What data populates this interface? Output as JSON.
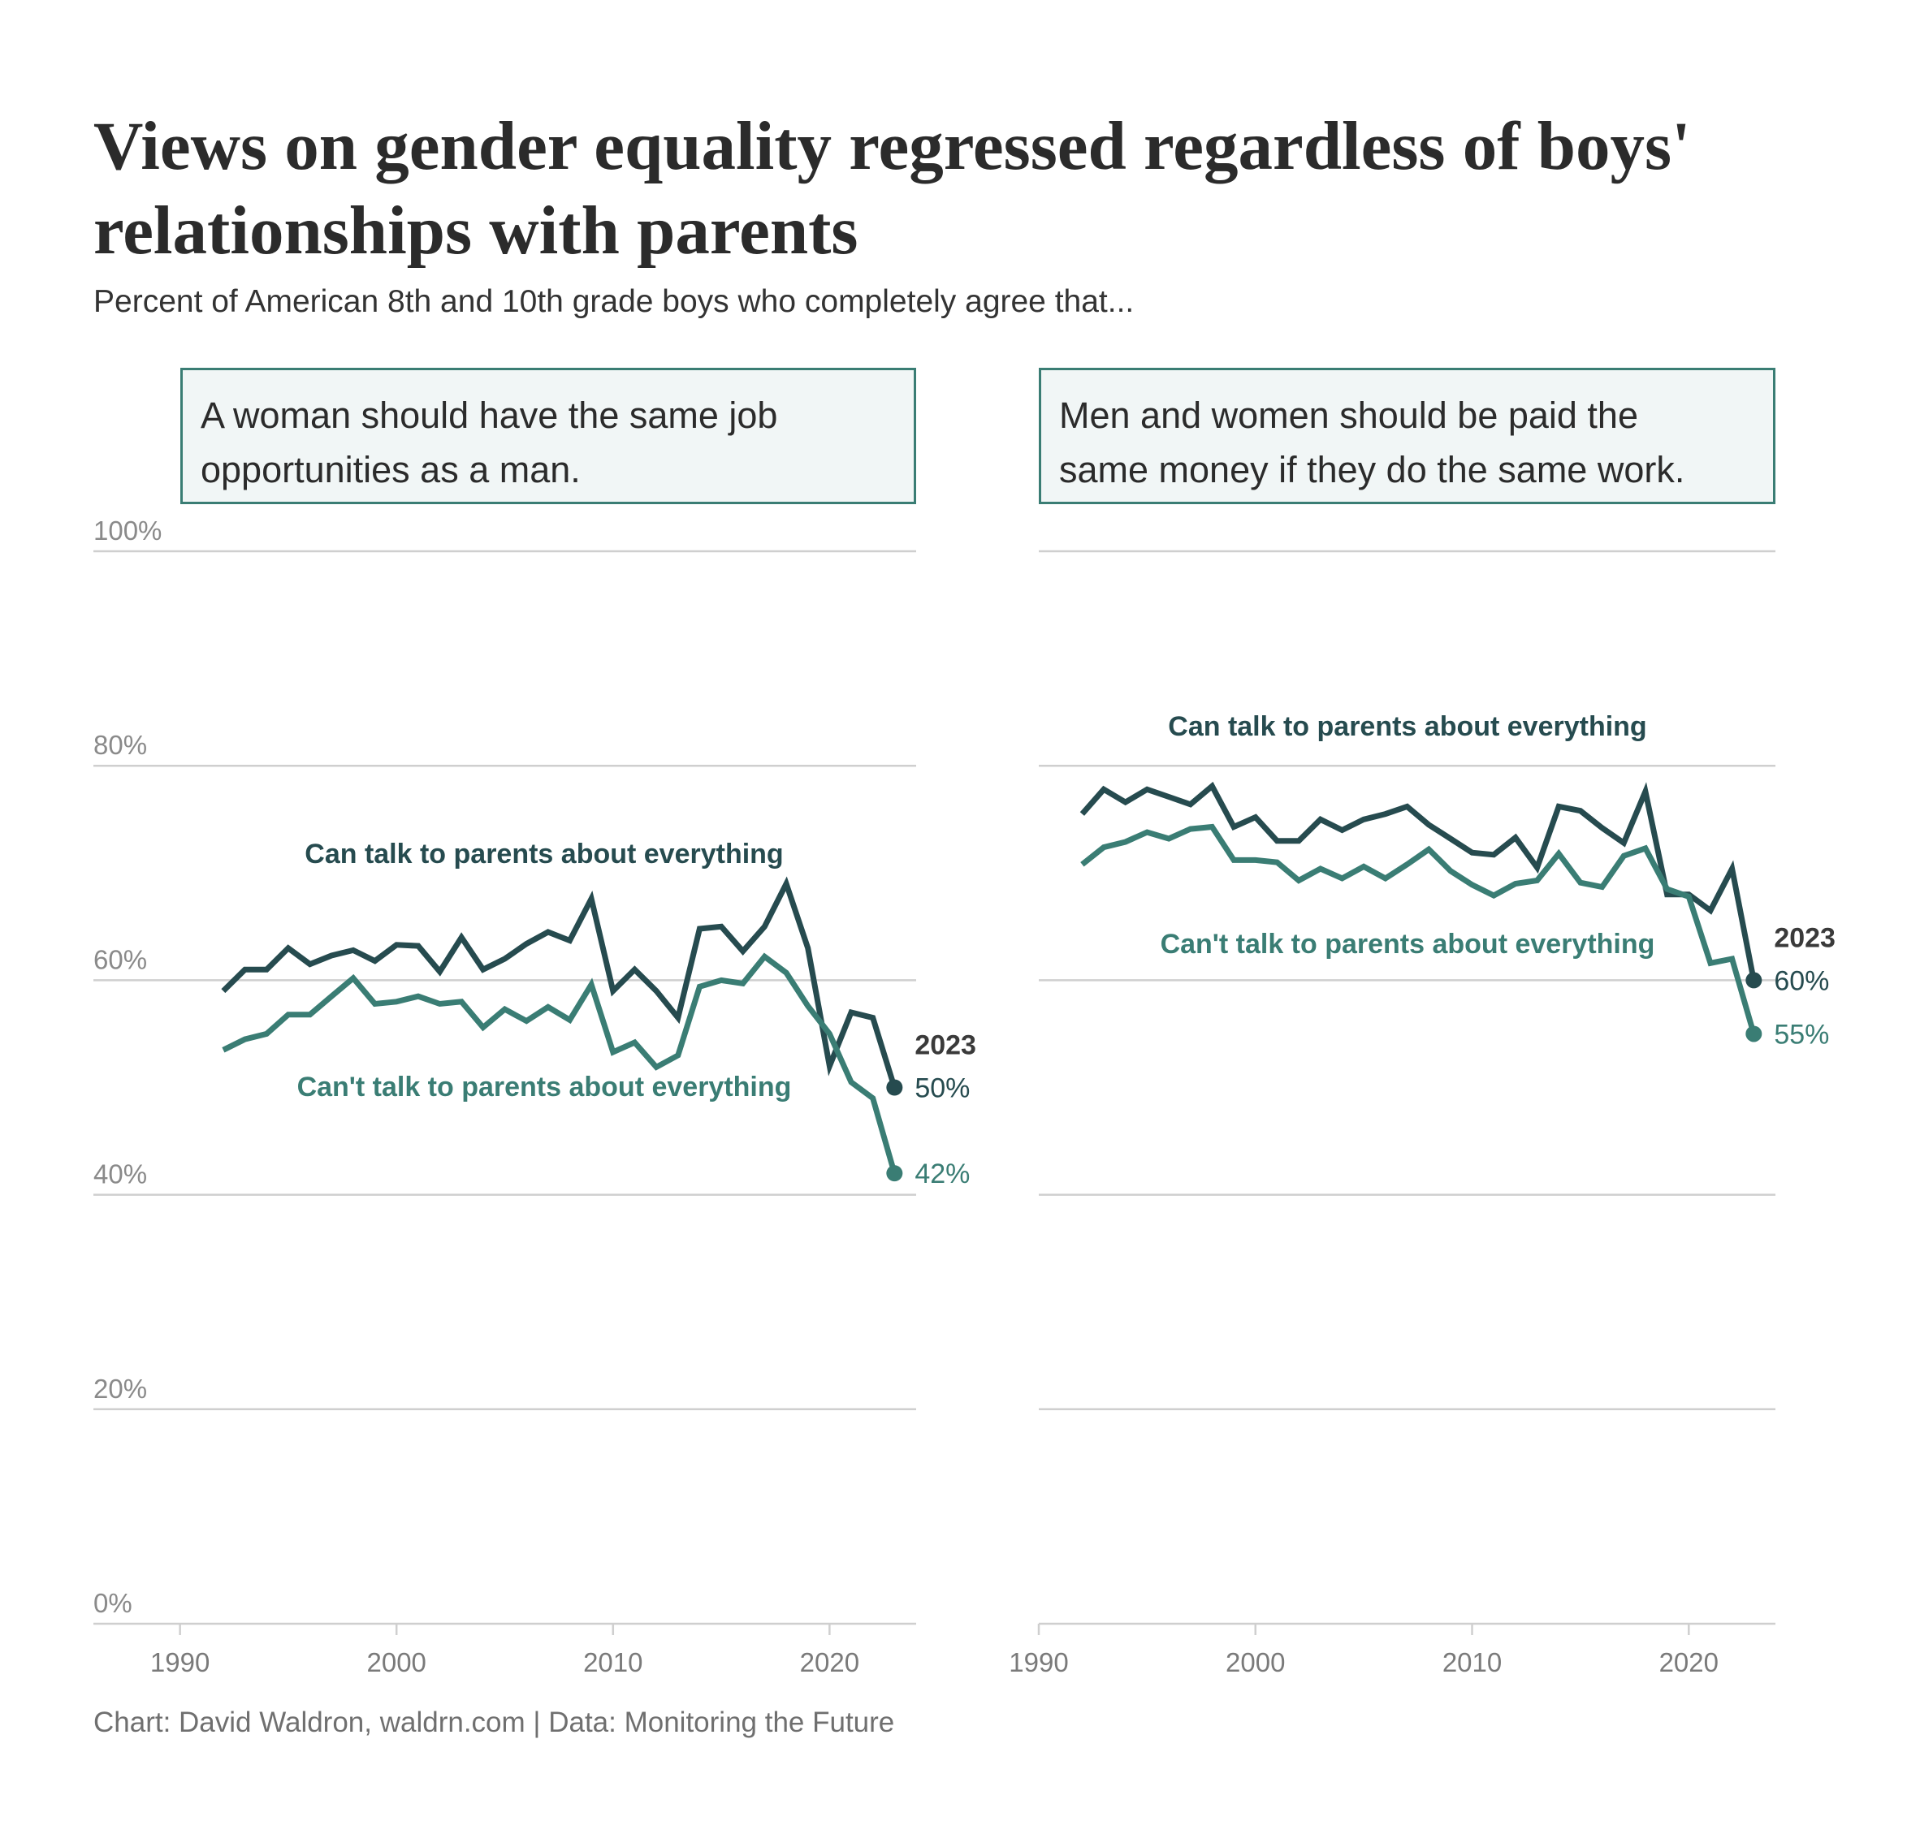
{
  "title": "Views on gender equality regressed regardless of boys' relationships with parents",
  "subtitle": "Percent of American 8th and 10th grade boys who completely agree that...",
  "caption": "Chart: David Waldron, waldrn.com | Data: Monitoring the Future",
  "colors": {
    "can_talk": "#264b4f",
    "cant_talk": "#3a7d74",
    "grid": "#cfcfcf",
    "box_border": "#3a7d74",
    "box_fill": "#f1f6f6"
  },
  "chart_data": [
    {
      "type": "line",
      "title": "A woman should have the same job opportunities as a man.",
      "title_lines": [
        "A woman should have the same job",
        "opportunities as a man."
      ],
      "ylim": [
        0,
        100
      ],
      "xlim": [
        1986,
        2024
      ],
      "yticks": [
        0,
        20,
        40,
        60,
        80,
        100
      ],
      "ytick_labels": [
        "0%",
        "20%",
        "40%",
        "60%",
        "80%",
        "100%"
      ],
      "xticks": [
        1990,
        2000,
        2010,
        2020
      ],
      "xtick_labels": [
        "1990",
        "2000",
        "2010",
        "2020"
      ],
      "grid": true,
      "end_year_label": "2023",
      "x": [
        1992,
        1993,
        1994,
        1995,
        1996,
        1997,
        1998,
        1999,
        2000,
        2001,
        2002,
        2003,
        2004,
        2005,
        2006,
        2007,
        2008,
        2009,
        2010,
        2011,
        2012,
        2013,
        2014,
        2015,
        2016,
        2017,
        2018,
        2019,
        2020,
        2021,
        2022,
        2023
      ],
      "series": [
        {
          "name": "Can talk to parents about everything",
          "key": "can_talk",
          "values": [
            59,
            61,
            61,
            63,
            61.5,
            62.3,
            62.8,
            61.8,
            63.3,
            63.2,
            60.8,
            64,
            61,
            62,
            63.4,
            64.5,
            63.7,
            67.6,
            59,
            61,
            59,
            56.5,
            64.8,
            65,
            62.7,
            65,
            69,
            63,
            52,
            57,
            56.5,
            50
          ],
          "end_label": "50%"
        },
        {
          "name": "Can't talk to parents about everything",
          "key": "cant_talk",
          "values": [
            53.5,
            54.5,
            55,
            56.8,
            56.8,
            58.5,
            60.2,
            57.8,
            58,
            58.5,
            57.8,
            58,
            55.6,
            57.3,
            56.2,
            57.5,
            56.3,
            59.6,
            53.3,
            54.2,
            51.9,
            53,
            59.4,
            60,
            59.7,
            62.2,
            60.7,
            57.6,
            55,
            50.5,
            49,
            42
          ],
          "end_label": "42%"
        }
      ]
    },
    {
      "type": "line",
      "title": "Men and women should be paid the same money if they do the same work.",
      "title_lines": [
        "Men and women should be paid the",
        "same money if they do the same work."
      ],
      "ylim": [
        0,
        100
      ],
      "xlim": [
        1990,
        2024
      ],
      "yticks": [
        0,
        20,
        40,
        60,
        80,
        100
      ],
      "xticks": [
        1990,
        2000,
        2010,
        2020
      ],
      "xtick_labels": [
        "1990",
        "2000",
        "2010",
        "2020"
      ],
      "grid": true,
      "end_year_label": "2023",
      "x": [
        1992,
        1993,
        1994,
        1995,
        1996,
        1997,
        1998,
        1999,
        2000,
        2001,
        2002,
        2003,
        2004,
        2005,
        2006,
        2007,
        2008,
        2009,
        2010,
        2011,
        2012,
        2013,
        2014,
        2015,
        2016,
        2017,
        2018,
        2019,
        2020,
        2021,
        2022,
        2023
      ],
      "series": [
        {
          "name": "Can talk to parents about everything",
          "key": "can_talk",
          "values": [
            75.5,
            77.8,
            76.6,
            77.8,
            77.1,
            76.4,
            78.1,
            74.3,
            75.2,
            73,
            73,
            75,
            74,
            75,
            75.5,
            76.2,
            74.5,
            73.2,
            71.9,
            71.7,
            73.3,
            70.5,
            76.2,
            75.8,
            74.2,
            72.8,
            77.6,
            68,
            68,
            66.5,
            70.4,
            60
          ],
          "end_label": "60%"
        },
        {
          "name": "Can't talk to parents about everything",
          "key": "cant_talk",
          "values": [
            70.8,
            72.4,
            72.9,
            73.8,
            73.2,
            74.1,
            74.3,
            71.2,
            71.2,
            71,
            69.3,
            70.4,
            69.5,
            70.6,
            69.5,
            70.8,
            72.2,
            70.2,
            68.9,
            67.9,
            69,
            69.3,
            71.8,
            69.1,
            68.7,
            71.6,
            72.3,
            68.5,
            67.8,
            61.6,
            62,
            55
          ],
          "end_label": "55%"
        }
      ]
    }
  ]
}
